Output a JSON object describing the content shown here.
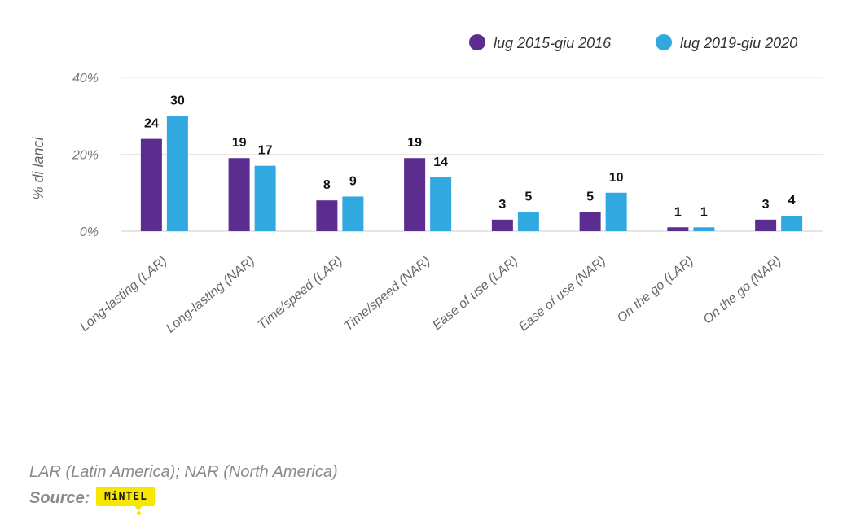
{
  "chart_data": {
    "type": "bar",
    "categories": [
      "Long-lasting (LAR)",
      "Long-lasting (NAR)",
      "Time/speed (LAR)",
      "Time/speed (NAR)",
      "Ease of use (LAR)",
      "Ease of use (NAR)",
      "On the go (LAR)",
      "On the go (NAR)"
    ],
    "series": [
      {
        "name": "lug 2015-giu 2016",
        "color": "#5b2d8e",
        "values": [
          24,
          19,
          8,
          19,
          3,
          5,
          1,
          3
        ]
      },
      {
        "name": "lug 2019-giu 2020",
        "color": "#31a8e0",
        "values": [
          30,
          17,
          9,
          14,
          5,
          10,
          1,
          4
        ]
      }
    ],
    "ylabel": "% di lanci",
    "ylim": [
      0,
      40
    ],
    "yticks": [
      0,
      20,
      40
    ],
    "ytick_labels": [
      "0%",
      "20%",
      "40%"
    ],
    "grid": true,
    "legend_position": "top-right"
  },
  "footnote": "LAR (Latin America); NAR (North America)",
  "source": {
    "label": "Source:",
    "logo_text": "MiNTEL"
  }
}
